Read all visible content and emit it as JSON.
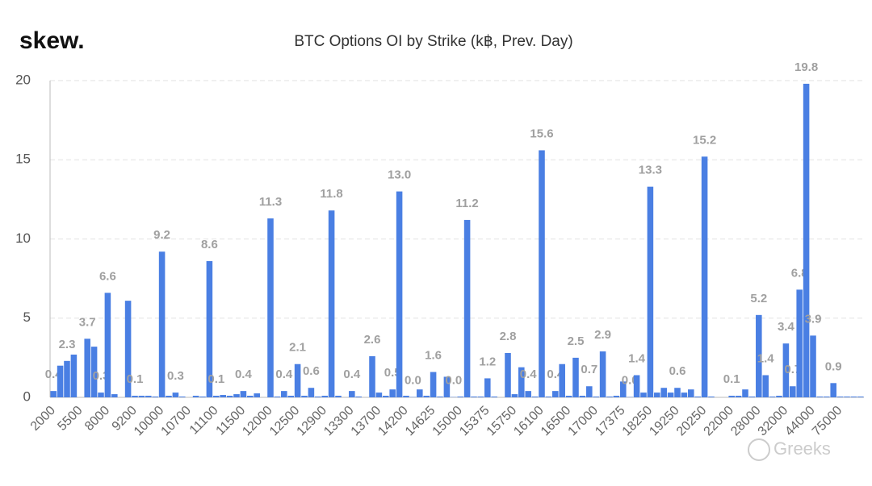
{
  "brand": "skew.",
  "watermark": "Greeks",
  "chart_data": {
    "type": "bar",
    "title": "BTC Options OI by Strike (k฿, Prev. Day)",
    "categories": [
      "2000",
      null,
      null,
      null,
      "5500",
      null,
      null,
      null,
      "8000",
      null,
      null,
      null,
      "9200",
      null,
      null,
      null,
      "10000",
      null,
      null,
      null,
      "10700",
      null,
      null,
      null,
      "11100",
      null,
      null,
      null,
      "11500",
      null,
      null,
      null,
      "12000",
      null,
      null,
      null,
      "12500",
      null,
      null,
      null,
      "12900",
      null,
      null,
      null,
      "13300",
      null,
      null,
      null,
      "13700",
      null,
      null,
      null,
      "14200",
      null,
      null,
      null,
      "14625",
      null,
      null,
      null,
      "15000",
      null,
      null,
      null,
      "15375",
      null,
      null,
      null,
      "15750",
      null,
      null,
      null,
      "16100",
      null,
      null,
      null,
      "16500",
      null,
      null,
      null,
      "17000",
      null,
      null,
      null,
      "17375",
      null,
      null,
      null,
      "18250",
      null,
      null,
      null,
      "19250",
      null,
      null,
      null,
      "20250",
      null,
      null,
      null,
      "22000",
      null,
      null,
      null,
      "28000",
      null,
      null,
      null,
      "32000",
      null,
      null,
      null,
      "44000",
      null,
      null,
      null,
      "75000",
      null,
      null,
      null
    ],
    "values": [
      0.4,
      2.0,
      2.3,
      2.7,
      0,
      3.7,
      3.2,
      0.3,
      6.6,
      0.2,
      0,
      6.1,
      0.1,
      0.1,
      0.1,
      0.05,
      9.2,
      0.1,
      0.3,
      0.05,
      0,
      0.1,
      0.05,
      8.6,
      0.1,
      0.15,
      0.1,
      0.2,
      0.4,
      0.1,
      0.25,
      0,
      11.3,
      0.05,
      0.4,
      0.1,
      2.1,
      0.1,
      0.6,
      0.05,
      0.1,
      11.8,
      0.1,
      0,
      0.4,
      0.05,
      0,
      2.6,
      0.3,
      0.1,
      0.5,
      13.0,
      0.1,
      0.02,
      0.5,
      0.1,
      1.6,
      0.05,
      1.3,
      0.02,
      0.05,
      11.2,
      0.05,
      0.05,
      1.2,
      0.05,
      0,
      2.8,
      0.2,
      1.9,
      0.4,
      0.05,
      15.6,
      0.05,
      0.4,
      2.1,
      0.1,
      2.5,
      0.1,
      0.7,
      0.05,
      2.9,
      0.05,
      0.1,
      1.0,
      0.02,
      1.4,
      0.3,
      13.3,
      0.3,
      0.6,
      0.3,
      0.6,
      0.3,
      0.5,
      0.05,
      15.2,
      0.05,
      0,
      0,
      0.1,
      0.1,
      0.5,
      0.05,
      5.2,
      1.4,
      0.05,
      0.1,
      3.4,
      0.7,
      6.8,
      19.8,
      3.9,
      0.05,
      0.05,
      0.9,
      0.05,
      0.05,
      0.05,
      0.05
    ],
    "value_labels": [
      "0.4",
      null,
      "2.3",
      null,
      null,
      "3.7",
      null,
      "0.3",
      "6.6",
      null,
      null,
      null,
      "0.1",
      null,
      null,
      null,
      "9.2",
      null,
      "0.3",
      null,
      null,
      null,
      null,
      "8.6",
      "0.1",
      null,
      null,
      null,
      "0.4",
      null,
      null,
      null,
      "11.3",
      null,
      "0.4",
      null,
      "2.1",
      null,
      "0.6",
      null,
      null,
      "11.8",
      null,
      null,
      "0.4",
      null,
      null,
      "2.6",
      null,
      null,
      "0.5",
      "13.0",
      null,
      "0.0",
      null,
      null,
      "1.6",
      null,
      null,
      "0.0",
      null,
      "11.2",
      null,
      null,
      "1.2",
      null,
      null,
      "2.8",
      null,
      null,
      "0.4",
      null,
      "15.6",
      null,
      "0.4",
      null,
      null,
      "2.5",
      null,
      "0.7",
      null,
      "2.9",
      null,
      null,
      null,
      "0.0",
      "1.4",
      null,
      "13.3",
      null,
      null,
      null,
      "0.6",
      null,
      null,
      null,
      "15.2",
      null,
      null,
      null,
      "0.1",
      null,
      null,
      null,
      "5.2",
      "1.4",
      null,
      null,
      "3.4",
      "0.7",
      "6.8",
      "19.8",
      "3.9",
      null,
      null,
      "0.9",
      null,
      null,
      null,
      null
    ],
    "color": "#4a7fe3",
    "ylim": [
      0,
      20
    ],
    "yticks": [
      0,
      5,
      10,
      15,
      20
    ],
    "grid": true
  }
}
